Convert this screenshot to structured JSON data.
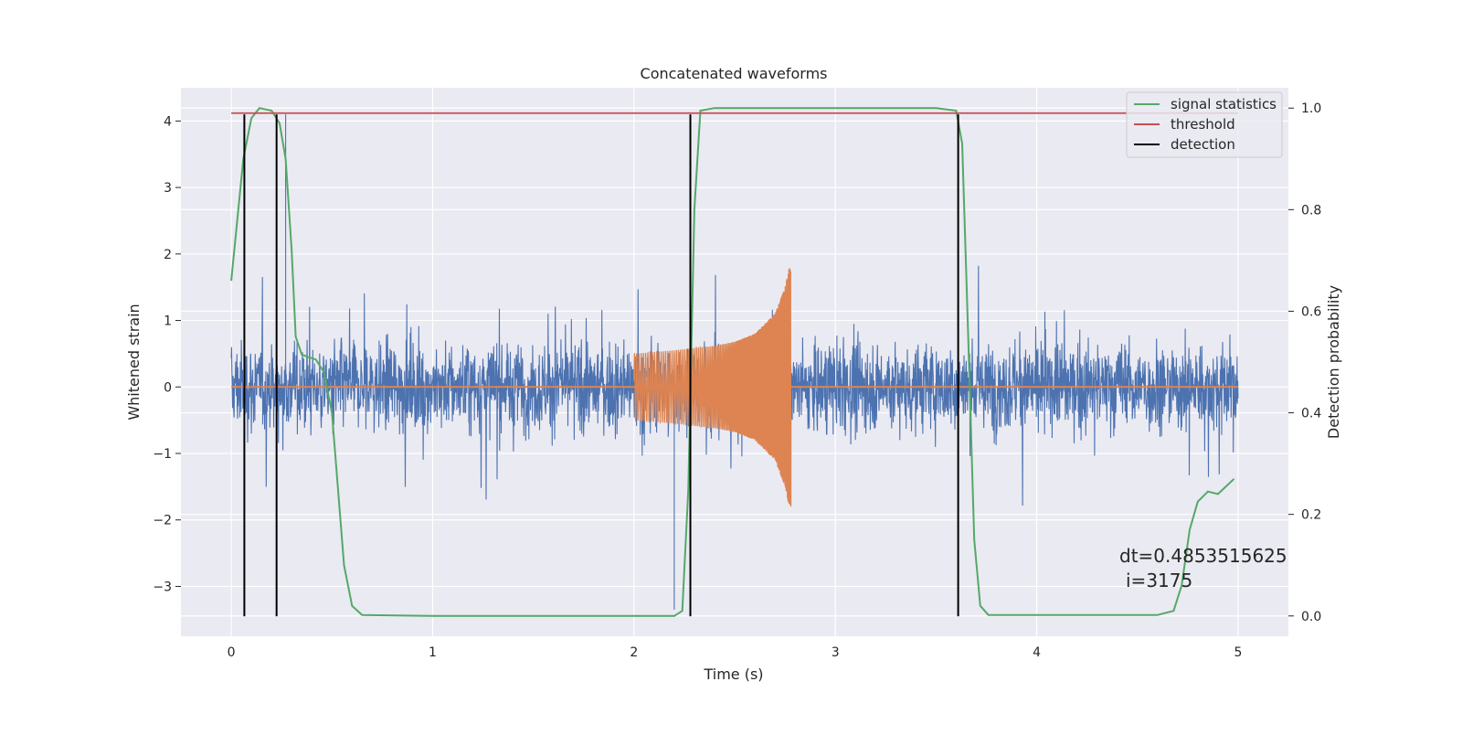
{
  "chart_data": {
    "type": "line",
    "title": "Concatenated waveforms",
    "xlabel": "Time (s)",
    "ylabel_left": "Whitened strain",
    "ylabel_right": "Detection probability",
    "xlim": [
      -0.25,
      5.25
    ],
    "ylim_left": [
      -3.75,
      4.5
    ],
    "ylim_right": [
      -0.04,
      1.04
    ],
    "xticks": [
      "0",
      "1",
      "2",
      "3",
      "4",
      "5"
    ],
    "yticks_left": [
      "−3",
      "−2",
      "−1",
      "0",
      "1",
      "2",
      "3",
      "4"
    ],
    "yticks_right": [
      "0.0",
      "0.2",
      "0.4",
      "0.6",
      "0.8",
      "1.0"
    ],
    "grid": true,
    "legend_position": "top-right",
    "legend": [
      "signal statistics",
      "threshold",
      "detection"
    ],
    "colors": {
      "noise": "#4c72b0",
      "waveform": "#dd8452",
      "signal_statistics": "#55a868",
      "threshold": "#c44e52",
      "detection": "#000000",
      "axes_bg": "#eaeaf2",
      "grid": "#ffffff"
    },
    "series": [
      {
        "role": "noisy strain (left axis)",
        "x_range": [
          0,
          5
        ],
        "typical_envelope": [
          -1.5,
          1.5
        ],
        "extremes": {
          "max": 4.1,
          "max_at": 0.27,
          "min": -3.35,
          "min_at": 2.2
        }
      },
      {
        "role": "injected waveform (left axis)",
        "x_range": [
          2.0,
          2.78
        ],
        "envelope_points": [
          [
            2.0,
            0.5
          ],
          [
            2.2,
            0.55
          ],
          [
            2.4,
            0.62
          ],
          [
            2.5,
            0.68
          ],
          [
            2.6,
            0.8
          ],
          [
            2.7,
            1.1
          ],
          [
            2.75,
            1.5
          ],
          [
            2.77,
            1.8
          ]
        ]
      },
      {
        "name": "signal statistics",
        "axis": "right",
        "points": [
          [
            0.0,
            0.66
          ],
          [
            0.03,
            0.78
          ],
          [
            0.06,
            0.9
          ],
          [
            0.1,
            0.98
          ],
          [
            0.14,
            1.0
          ],
          [
            0.2,
            0.995
          ],
          [
            0.24,
            0.97
          ],
          [
            0.27,
            0.9
          ],
          [
            0.3,
            0.72
          ],
          [
            0.32,
            0.55
          ],
          [
            0.35,
            0.515
          ],
          [
            0.38,
            0.51
          ],
          [
            0.42,
            0.505
          ],
          [
            0.46,
            0.48
          ],
          [
            0.5,
            0.4
          ],
          [
            0.53,
            0.25
          ],
          [
            0.56,
            0.1
          ],
          [
            0.6,
            0.02
          ],
          [
            0.65,
            0.002
          ],
          [
            1.0,
            0.0
          ],
          [
            2.0,
            0.0
          ],
          [
            2.2,
            0.0
          ],
          [
            2.24,
            0.01
          ],
          [
            2.27,
            0.25
          ],
          [
            2.3,
            0.8
          ],
          [
            2.33,
            0.995
          ],
          [
            2.4,
            1.0
          ],
          [
            3.5,
            1.0
          ],
          [
            3.6,
            0.995
          ],
          [
            3.63,
            0.93
          ],
          [
            3.66,
            0.55
          ],
          [
            3.69,
            0.15
          ],
          [
            3.72,
            0.02
          ],
          [
            3.76,
            0.002
          ],
          [
            4.6,
            0.002
          ],
          [
            4.68,
            0.01
          ],
          [
            4.72,
            0.06
          ],
          [
            4.76,
            0.17
          ],
          [
            4.8,
            0.225
          ],
          [
            4.85,
            0.245
          ],
          [
            4.9,
            0.24
          ],
          [
            4.94,
            0.255
          ],
          [
            4.98,
            0.27
          ]
        ]
      },
      {
        "name": "threshold",
        "axis": "right",
        "x_range": [
          0,
          5
        ],
        "value": 0.99
      },
      {
        "name": "detection",
        "axis": "left",
        "x": [
          0.065,
          0.225,
          2.28,
          3.61
        ],
        "y_range": [
          -3.45,
          4.1
        ]
      }
    ],
    "annotation": [
      "dt=0.4853515625",
      "i=3175"
    ]
  }
}
